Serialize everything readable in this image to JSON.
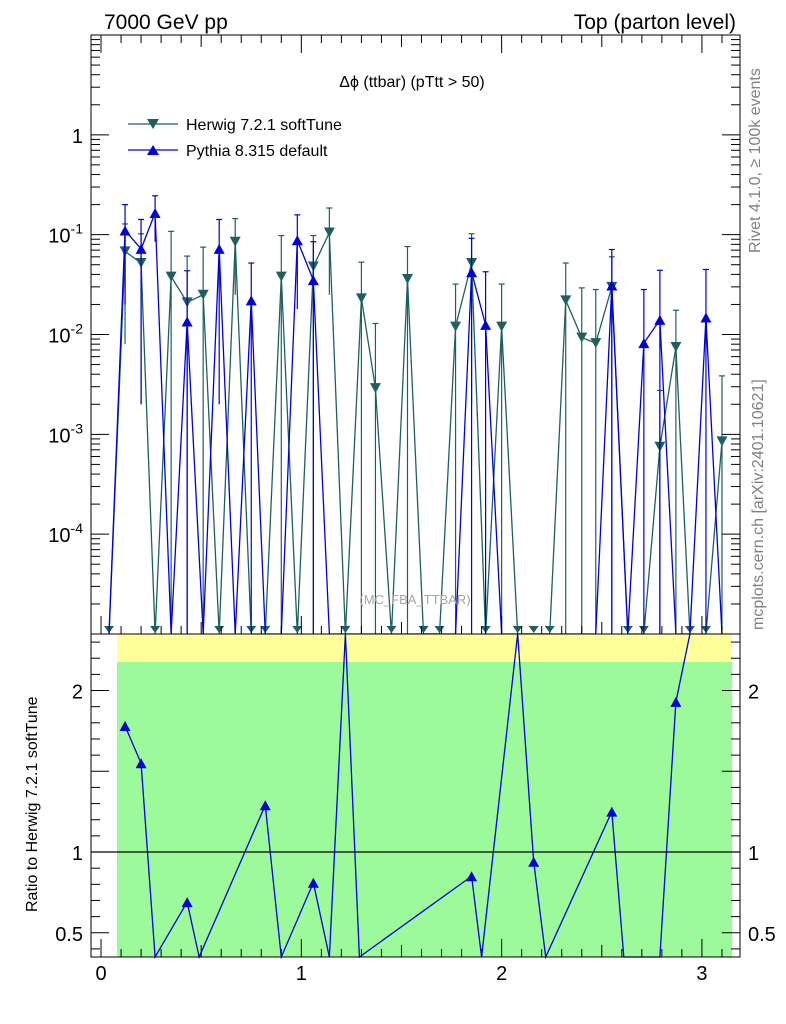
{
  "header": {
    "left": "7000 GeV pp",
    "right": "Top (parton level)"
  },
  "side": {
    "rivet": "Rivet 4.1.0, ≥ 100k events",
    "mcplots": "mcplots.cern.ch [arXiv:2401.10621]"
  },
  "watermark": "(MC_FBA_TTBAR)",
  "colors": {
    "herwig": "#1f5f60",
    "pythia": "#0000dd",
    "band_green": "#9dfa9a",
    "band_yellow": "#ffff99"
  },
  "chart_data": [
    {
      "type": "line",
      "title": "Δϕ (ttbar) (pTtt > 50)",
      "xlabel": "",
      "ylabel": "",
      "yscale": "log",
      "xlim": [
        -0.05,
        3.19
      ],
      "ylim": [
        1e-05,
        10
      ],
      "x_ticks": [
        0,
        1,
        2,
        3
      ],
      "y_ticks": [
        {
          "v": 1,
          "label": "1"
        },
        {
          "v": 0.1,
          "label": "10^-1"
        },
        {
          "v": 0.01,
          "label": "10^-2"
        },
        {
          "v": 0.001,
          "label": "10^-3"
        },
        {
          "v": 0.0001,
          "label": "10^-4"
        }
      ],
      "legend_position": "top-left",
      "x": [
        0.04,
        0.12,
        0.2,
        0.27,
        0.35,
        0.43,
        0.51,
        0.59,
        0.67,
        0.75,
        0.82,
        0.9,
        0.98,
        1.06,
        1.14,
        1.22,
        1.3,
        1.37,
        1.45,
        1.53,
        1.61,
        1.69,
        1.77,
        1.85,
        1.92,
        2.0,
        2.08,
        2.16,
        2.24,
        2.32,
        2.4,
        2.47,
        2.55,
        2.63,
        2.71,
        2.79,
        2.87,
        2.94,
        3.02,
        3.1
      ],
      "series": [
        {
          "name": "Herwig 7.2.1 softTune",
          "marker": "triangle-down",
          "values": [
            0,
            0.068,
            0.052,
            0,
            0.038,
            0.021,
            0.025,
            0,
            0.085,
            0,
            0,
            0.038,
            0,
            0.048,
            0.105,
            0,
            0.023,
            0.0029,
            0,
            0.036,
            0,
            0,
            0.012,
            0.052,
            0,
            0.012,
            0,
            0,
            0,
            0.022,
            0.0093,
            0.0082,
            0.03,
            0,
            0,
            0.00075,
            0.0075,
            0,
            0,
            0.00085
          ],
          "errors": [
            0,
            0.06,
            0.05,
            0,
            0.07,
            0.04,
            0.05,
            0,
            0.06,
            0,
            0,
            0.06,
            0,
            0.05,
            0.08,
            0,
            0.03,
            0.01,
            0,
            0.04,
            0,
            0,
            0.02,
            0.05,
            0,
            0.02,
            0,
            0,
            0,
            0.03,
            0.02,
            0.02,
            0.03,
            0,
            0,
            0.002,
            0.01,
            0,
            0,
            0.003
          ]
        },
        {
          "name": "Pythia 8.315 default",
          "marker": "triangle-up",
          "values": [
            0,
            0.11,
            0.072,
            0.165,
            0,
            0.0135,
            0,
            0.072,
            0,
            0.022,
            0,
            0,
            0.088,
            0.035,
            0,
            0,
            0,
            0,
            0,
            0,
            0,
            0,
            0,
            0.042,
            0.0125,
            0,
            0,
            0,
            0,
            0,
            0,
            0,
            0.031,
            0,
            0.0082,
            0.014,
            0,
            0,
            0.0148,
            0
          ],
          "errors": [
            0,
            0.09,
            0.07,
            0.08,
            0,
            0.03,
            0,
            0.07,
            0,
            0.03,
            0,
            0,
            0.07,
            0.05,
            0,
            0,
            0,
            0,
            0,
            0,
            0,
            0,
            0,
            0.05,
            0.03,
            0,
            0,
            0,
            0,
            0,
            0,
            0,
            0.04,
            0,
            0.02,
            0.03,
            0,
            0,
            0.03,
            0
          ]
        }
      ]
    },
    {
      "type": "line",
      "title": "",
      "xlabel": "",
      "ylabel": "Ratio to Herwig 7.2.1 softTune",
      "xlim": [
        -0.05,
        3.19
      ],
      "ylim": [
        0.35,
        2.35
      ],
      "x_ticks": [
        0,
        1,
        2,
        3
      ],
      "y_ticks": [
        0.5,
        1,
        2
      ],
      "reference_line": 1,
      "band_edges": [
        0.08,
        3.15
      ],
      "series": [
        {
          "name": "Pythia 8.315 default / Herwig 7.2.1 softTune",
          "x": [
            0.12,
            0.2,
            0.27,
            0.43,
            0.49,
            0.82,
            0.9,
            1.06,
            1.14,
            1.22,
            1.29,
            1.85,
            1.9,
            2.08,
            2.16,
            2.22,
            2.55,
            2.61,
            2.79,
            2.87,
            2.94
          ],
          "values": [
            1.78,
            1.55,
            0.35,
            0.69,
            0.35,
            1.29,
            0.35,
            0.81,
            0.35,
            2.35,
            0.35,
            0.85,
            0.35,
            2.35,
            0.94,
            0.35,
            1.25,
            0.35,
            0.35,
            1.93,
            2.35
          ]
        }
      ]
    }
  ]
}
